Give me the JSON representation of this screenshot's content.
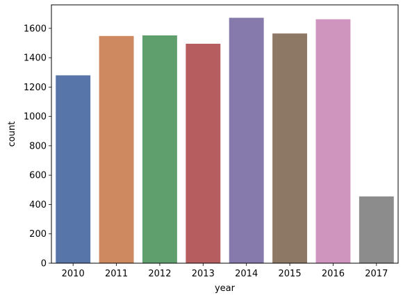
{
  "chart_data": {
    "type": "bar",
    "xlabel": "year",
    "ylabel": "count",
    "categories": [
      "2010",
      "2011",
      "2012",
      "2013",
      "2014",
      "2015",
      "2016",
      "2017"
    ],
    "values": [
      1280,
      1548,
      1552,
      1495,
      1672,
      1565,
      1662,
      455
    ],
    "colors": [
      "#5875A9",
      "#CF8960",
      "#5F9F6E",
      "#B65D60",
      "#857AAB",
      "#8D7866",
      "#D095BF",
      "#8C8C8C"
    ],
    "ylim": [
      0,
      1760
    ],
    "yticks": [
      0,
      200,
      400,
      600,
      800,
      1000,
      1200,
      1400,
      1600
    ],
    "ytick_labels": [
      "0",
      "200",
      "400",
      "600",
      "800",
      "1000",
      "1200",
      "1400",
      "1600"
    ],
    "grid": false,
    "legend": false
  }
}
